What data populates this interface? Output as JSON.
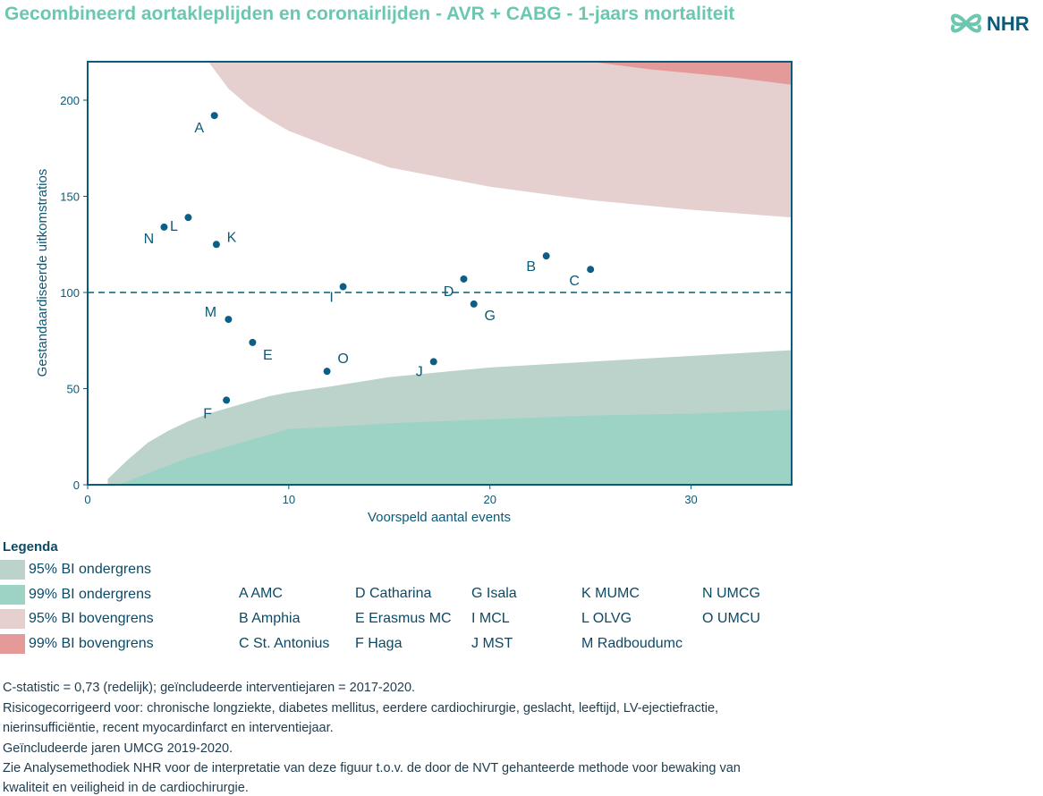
{
  "title": "Gecombineerd aortakleplijden en coronairlijden - AVR + CABG - 1-jaars mortaliteit",
  "logo_text": "NHR",
  "chart_data": {
    "type": "scatter",
    "xlabel": "Voorspeld aantal events",
    "ylabel": "Gestandaardiseerde uitkomstratios",
    "xlim": [
      0,
      35
    ],
    "ylim": [
      0,
      220
    ],
    "x_ticks": [
      0,
      10,
      20,
      30
    ],
    "y_ticks": [
      0,
      50,
      100,
      150,
      200
    ],
    "reference_line": 100,
    "grid": false,
    "points": [
      {
        "label": "A",
        "x": 6.3,
        "y": 192
      },
      {
        "label": "B",
        "x": 22.8,
        "y": 119
      },
      {
        "label": "C",
        "x": 25.0,
        "y": 112
      },
      {
        "label": "D",
        "x": 18.7,
        "y": 107
      },
      {
        "label": "E",
        "x": 8.2,
        "y": 74
      },
      {
        "label": "F",
        "x": 6.9,
        "y": 44
      },
      {
        "label": "G",
        "x": 19.2,
        "y": 94
      },
      {
        "label": "I",
        "x": 12.7,
        "y": 103
      },
      {
        "label": "J",
        "x": 17.2,
        "y": 64
      },
      {
        "label": "K",
        "x": 6.4,
        "y": 125
      },
      {
        "label": "L",
        "x": 5.0,
        "y": 139
      },
      {
        "label": "M",
        "x": 7.0,
        "y": 86
      },
      {
        "label": "N",
        "x": 3.8,
        "y": 134
      },
      {
        "label": "O",
        "x": 11.9,
        "y": 59
      }
    ],
    "bands": {
      "ci95_lower": {
        "x": [
          1,
          2,
          3,
          4,
          5,
          6,
          7,
          8,
          9,
          10,
          12,
          15,
          20,
          25,
          30,
          35
        ],
        "y": [
          3,
          13,
          22,
          28,
          33,
          37,
          40,
          43,
          46,
          48,
          51,
          56,
          61,
          64,
          67,
          70
        ]
      },
      "ci99_lower": {
        "x": [
          1.5,
          3,
          4,
          5,
          6,
          7,
          8,
          9,
          10,
          12,
          15,
          20,
          25,
          30,
          35
        ],
        "y": [
          0,
          6,
          10,
          14,
          17,
          20,
          23,
          26,
          29,
          30,
          32,
          34,
          36,
          37,
          39
        ]
      },
      "ci95_upper": {
        "x": [
          6.0,
          6.5,
          7,
          8,
          9,
          10,
          12,
          15,
          20,
          25,
          30,
          35
        ],
        "y": [
          220,
          213,
          206,
          197,
          190,
          184,
          176,
          165,
          155,
          148,
          143,
          139
        ]
      },
      "ci99_upper": {
        "x": [
          25,
          28,
          30,
          32,
          35
        ],
        "y": [
          220,
          216,
          214,
          212,
          208
        ]
      }
    }
  },
  "legend": {
    "title": "Legenda",
    "bands": [
      {
        "label": "95% BI ondergrens",
        "color": "#bcd3cc"
      },
      {
        "label": "99% BI ondergrens",
        "color": "#9dd3c5"
      },
      {
        "label": "95% BI bovengrens",
        "color": "#e6cfcf"
      },
      {
        "label": "99% BI bovengrens",
        "color": "#e59a9a"
      }
    ],
    "hospitals": [
      [
        "A AMC",
        "B Amphia",
        "C St. Antonius"
      ],
      [
        "D Catharina",
        "E Erasmus MC",
        "F Haga"
      ],
      [
        "G Isala",
        "I MCL",
        "J MST"
      ],
      [
        "K MUMC",
        "L OLVG",
        "M Radboudumc"
      ],
      [
        "N UMCG",
        "O UMCU"
      ]
    ]
  },
  "footnotes": [
    "C-statistic = 0,73 (redelijk); geïncludeerde interventiejaren = 2017-2020.",
    "Risicogecorrigeerd voor: chronische longziekte, diabetes mellitus, eerdere cardiochirurgie, geslacht, leeftijd, LV-ejectiefractie,",
    "nierinsufficiëntie, recent myocardinfarct en interventiejaar.",
    "Geïncludeerde jaren UMCG 2019-2020.",
    "Zie Analysemethodiek NHR voor de interpretatie van deze figuur t.o.v. de door de NVT gehanteerde methode voor bewaking van",
    "kwaliteit en veiligheid in de cardiochirurgie."
  ],
  "colors": {
    "title": "#6cc7b0",
    "axis": "#0b5a78",
    "point": "#0b5f86",
    "text": "#0b4a66"
  }
}
